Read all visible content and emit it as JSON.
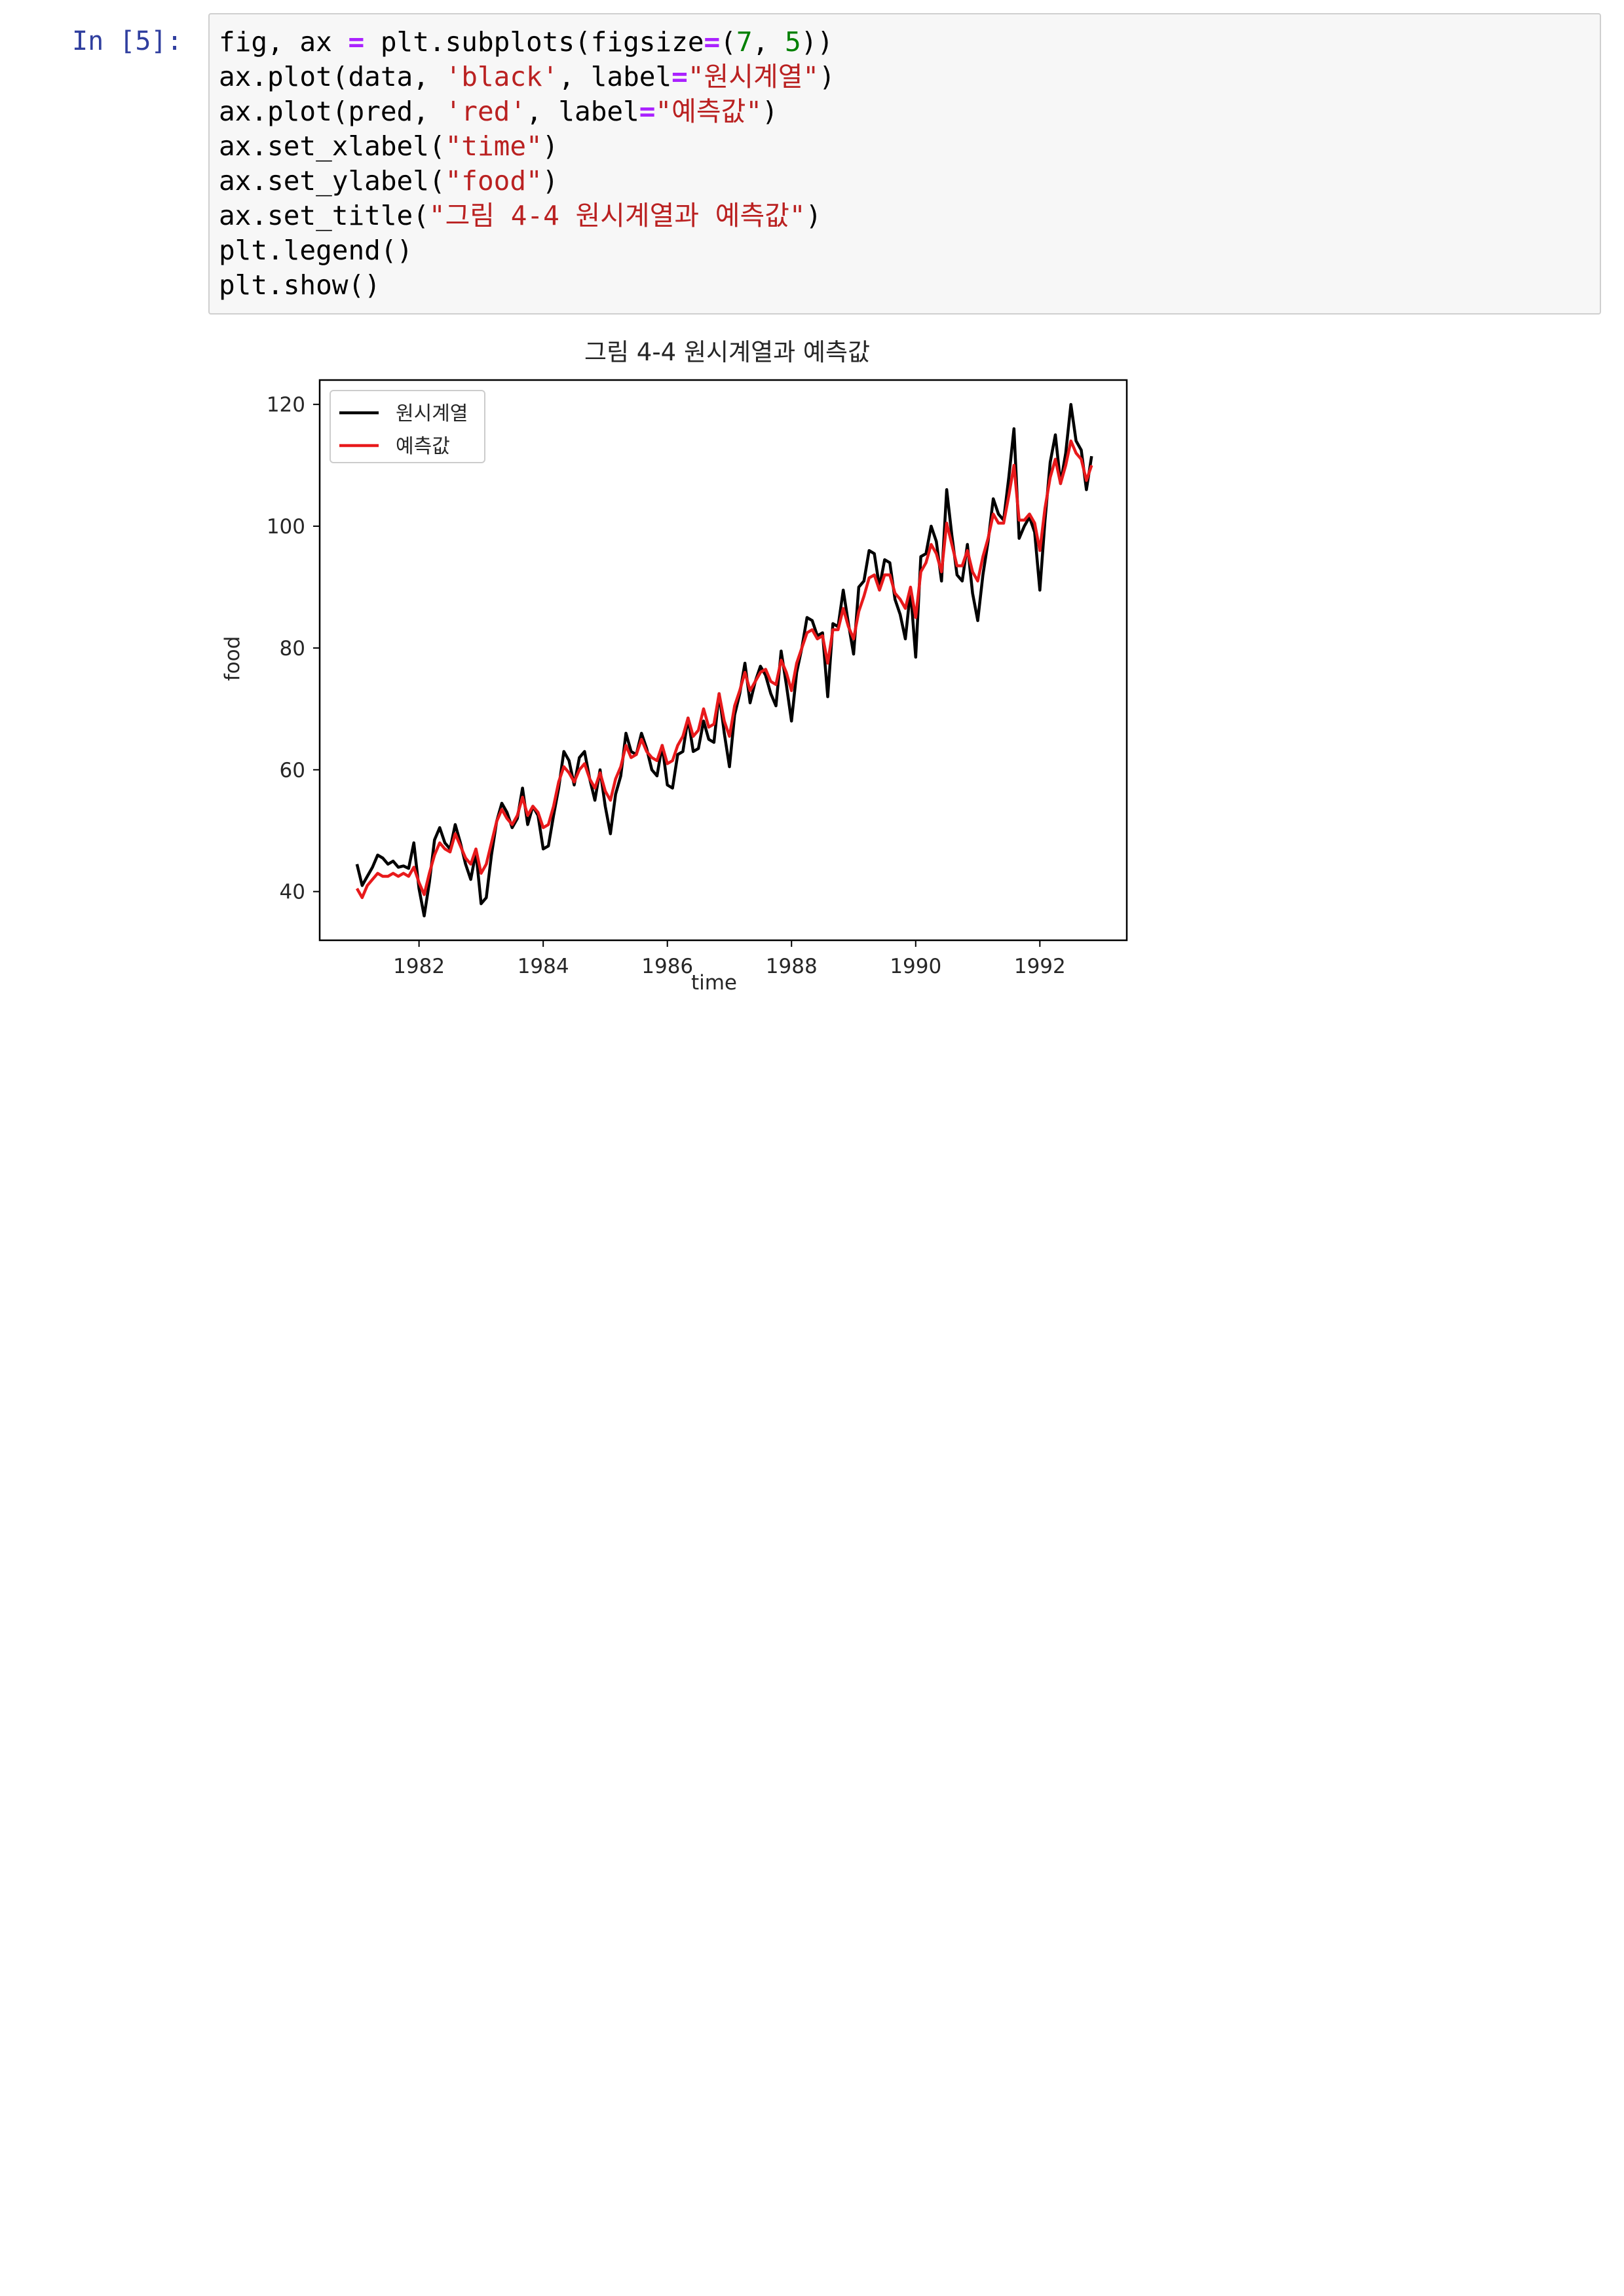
{
  "cell": {
    "prompt": "In [5]:",
    "code_lines": [
      [
        {
          "t": "fig, ax "
        },
        {
          "t": "=",
          "c": "op"
        },
        {
          "t": " plt.subplots(figsize"
        },
        {
          "t": "=",
          "c": "op"
        },
        {
          "t": "("
        },
        {
          "t": "7",
          "c": "num"
        },
        {
          "t": ", "
        },
        {
          "t": "5",
          "c": "num"
        },
        {
          "t": "))"
        }
      ],
      [
        {
          "t": "ax.plot(data, "
        },
        {
          "t": "'black'",
          "c": "str"
        },
        {
          "t": ", label"
        },
        {
          "t": "=",
          "c": "op"
        },
        {
          "t": "\"원시계열\"",
          "c": "str"
        },
        {
          "t": ")"
        }
      ],
      [
        {
          "t": "ax.plot(pred, "
        },
        {
          "t": "'red'",
          "c": "str"
        },
        {
          "t": ", label"
        },
        {
          "t": "=",
          "c": "op"
        },
        {
          "t": "\"예측값\"",
          "c": "str"
        },
        {
          "t": ")"
        }
      ],
      [
        {
          "t": "ax.set_xlabel("
        },
        {
          "t": "\"time\"",
          "c": "str"
        },
        {
          "t": ")"
        }
      ],
      [
        {
          "t": "ax.set_ylabel("
        },
        {
          "t": "\"food\"",
          "c": "str"
        },
        {
          "t": ")"
        }
      ],
      [
        {
          "t": "ax.set_title("
        },
        {
          "t": "\"그림 4-4 원시계열과 예측값\"",
          "c": "str"
        },
        {
          "t": ")"
        }
      ],
      [
        {
          "t": "plt.legend()"
        }
      ],
      [
        {
          "t": "plt.show()"
        }
      ]
    ]
  },
  "chart_data": {
    "type": "line",
    "title": "그림 4-4 원시계열과 예측값",
    "xlabel": "time",
    "ylabel": "food",
    "xlim": [
      1980.4,
      1993.4
    ],
    "ylim": [
      32,
      124
    ],
    "xticks": [
      1982,
      1984,
      1986,
      1988,
      1990,
      1992
    ],
    "xtick_labels": [
      "1982",
      "1984",
      "1986",
      "1988",
      "1990",
      "1992"
    ],
    "yticks": [
      40,
      60,
      80,
      100,
      120
    ],
    "ytick_labels": [
      "40",
      "60",
      "80",
      "100",
      "120"
    ],
    "grid": false,
    "legend_position": "upper-left",
    "x_start": 1981.0,
    "x_step": 0.08333,
    "series": [
      {
        "name": "원시계열",
        "color": "#000000",
        "values": [
          44.5,
          41.0,
          42.5,
          44.0,
          46.0,
          45.5,
          44.5,
          45.0,
          44.0,
          44.2,
          43.8,
          48.0,
          40.5,
          36.0,
          41.5,
          48.5,
          50.5,
          48.0,
          47.0,
          51.0,
          48.0,
          44.5,
          42.0,
          46.5,
          38.0,
          39.0,
          46.0,
          51.5,
          54.5,
          53.0,
          50.5,
          52.0,
          57.0,
          51.0,
          54.0,
          52.5,
          47.0,
          47.5,
          52.5,
          57.0,
          63.0,
          61.5,
          57.5,
          62.0,
          63.0,
          58.5,
          55.0,
          60.0,
          54.0,
          49.5,
          56.0,
          59.0,
          66.0,
          63.0,
          62.5,
          66.0,
          63.5,
          60.0,
          59.0,
          64.0,
          57.5,
          57.0,
          62.5,
          63.0,
          68.5,
          63.0,
          63.5,
          68.0,
          65.0,
          64.5,
          72.5,
          66.0,
          60.5,
          69.0,
          72.5,
          77.5,
          71.0,
          74.5,
          77.0,
          75.5,
          72.5,
          70.5,
          79.5,
          74.0,
          68.0,
          76.0,
          80.0,
          85.0,
          84.5,
          82.0,
          82.5,
          72.0,
          84.0,
          83.5,
          89.5,
          84.0,
          79.0,
          90.0,
          91.0,
          96.0,
          95.5,
          90.0,
          94.5,
          94.0,
          88.0,
          85.5,
          81.5,
          89.5,
          78.5,
          95.0,
          95.5,
          100.0,
          97.5,
          91.0,
          106.0,
          98.5,
          92.0,
          91.0,
          97.0,
          89.0,
          84.5,
          92.0,
          97.5,
          104.5,
          102.0,
          101.0,
          108.0,
          116.0,
          98.0,
          100.0,
          101.5,
          99.0,
          89.5,
          101.0,
          110.5,
          115.0,
          107.0,
          112.0,
          120.0,
          114.0,
          112.5,
          106.0,
          111.5
        ]
      },
      {
        "name": "예측값",
        "color": "#e8191b",
        "values": [
          40.5,
          39.0,
          41.0,
          42.0,
          43.0,
          42.5,
          42.5,
          43.0,
          42.5,
          43.0,
          42.5,
          44.0,
          41.5,
          39.5,
          43.0,
          46.0,
          48.0,
          47.0,
          46.5,
          49.5,
          47.5,
          45.5,
          44.5,
          47.0,
          43.0,
          44.5,
          48.0,
          51.5,
          53.5,
          52.0,
          51.0,
          52.5,
          55.5,
          52.5,
          54.0,
          53.0,
          50.5,
          51.0,
          54.0,
          58.0,
          60.5,
          59.5,
          58.0,
          60.0,
          61.0,
          58.5,
          57.0,
          59.5,
          56.5,
          55.0,
          58.5,
          60.5,
          64.0,
          62.0,
          62.5,
          65.0,
          63.0,
          62.0,
          61.5,
          64.0,
          61.0,
          61.5,
          64.0,
          65.5,
          68.5,
          65.5,
          66.5,
          70.0,
          67.0,
          67.5,
          72.5,
          68.0,
          65.5,
          70.5,
          73.0,
          76.0,
          73.0,
          74.5,
          76.0,
          76.5,
          74.5,
          74.0,
          78.0,
          76.0,
          73.0,
          77.5,
          80.0,
          82.5,
          83.0,
          81.5,
          82.0,
          77.5,
          83.0,
          83.0,
          86.5,
          83.5,
          81.5,
          86.0,
          88.5,
          91.5,
          92.0,
          89.5,
          92.0,
          92.0,
          89.0,
          88.0,
          86.5,
          90.0,
          85.0,
          92.5,
          94.0,
          97.0,
          95.5,
          92.5,
          100.5,
          97.0,
          93.5,
          93.5,
          96.0,
          92.5,
          91.0,
          95.0,
          98.0,
          102.0,
          100.5,
          100.5,
          105.0,
          110.0,
          101.0,
          101.0,
          102.0,
          100.5,
          96.0,
          103.0,
          108.0,
          111.0,
          107.0,
          110.0,
          114.0,
          112.0,
          111.0,
          107.5,
          110.0
        ]
      }
    ]
  }
}
